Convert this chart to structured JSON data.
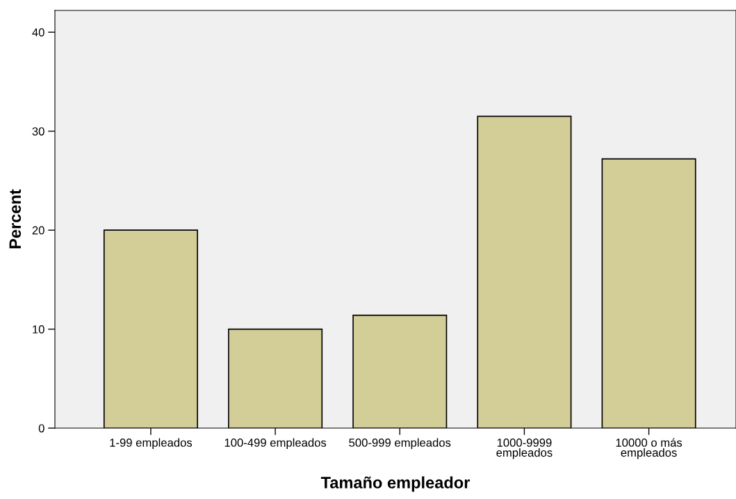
{
  "chart_data": {
    "type": "bar",
    "categories": [
      "1-99 empleados",
      "100-499 empleados",
      "500-999 empleados",
      "1000-9999\nempleados",
      "10000 o más\nempleados"
    ],
    "values": [
      20.0,
      10.0,
      11.4,
      31.5,
      27.2
    ],
    "color": "#d3ce97",
    "xlabel": "Tamaño empleador",
    "ylabel": "Percent",
    "ylim": [
      0,
      42.2
    ],
    "yticks": [
      0,
      10,
      20,
      30,
      40
    ],
    "grid": false,
    "legend": false
  }
}
